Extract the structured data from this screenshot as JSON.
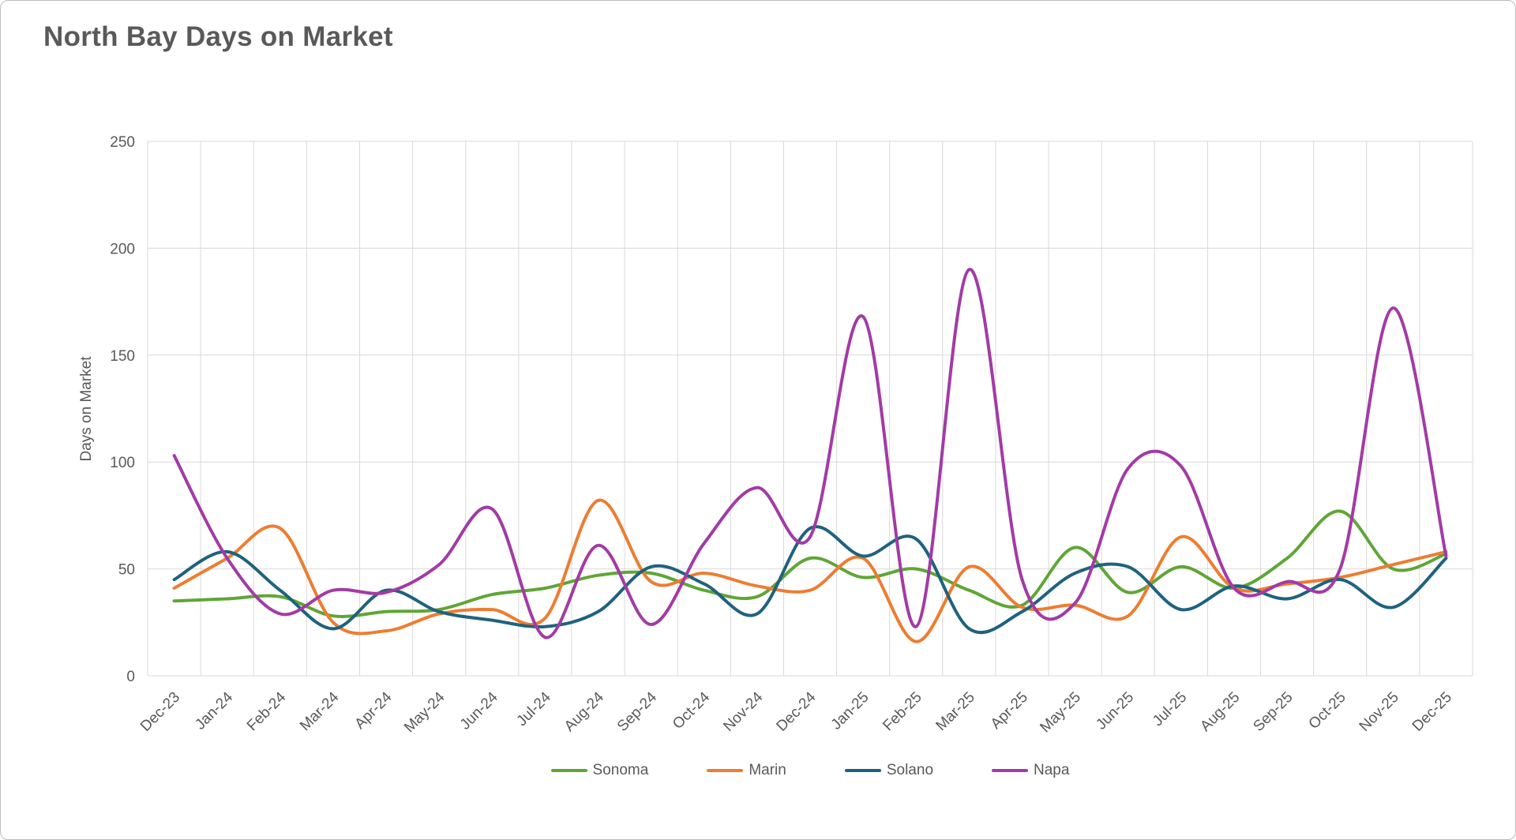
{
  "chart_data": {
    "type": "line",
    "title": "North Bay Days on Market",
    "xlabel": "",
    "ylabel": "Days on Market",
    "ylim": [
      0,
      250
    ],
    "yticks": [
      0,
      50,
      100,
      150,
      200,
      250
    ],
    "grid": true,
    "line_style": "smooth",
    "legend_position": "bottom",
    "categories": [
      "Dec-23",
      "Jan-24",
      "Feb-24",
      "Mar-24",
      "Apr-24",
      "May-24",
      "Jun-24",
      "Jul-24",
      "Aug-24",
      "Sep-24",
      "Oct-24",
      "Nov-24",
      "Dec-24",
      "Jan-25",
      "Feb-25",
      "Mar-25",
      "Apr-25",
      "May-25",
      "Jun-25",
      "Jul-25",
      "Aug-25",
      "Sep-25",
      "Oct-25",
      "Nov-25",
      "Dec-25"
    ],
    "series": [
      {
        "name": "Sonoma",
        "color": "#5fa636",
        "values": [
          35,
          36,
          37,
          28,
          30,
          31,
          38,
          41,
          47,
          48,
          40,
          37,
          55,
          46,
          50,
          40,
          33,
          60,
          39,
          51,
          41,
          55,
          77,
          50,
          57
        ]
      },
      {
        "name": "Marin",
        "color": "#ed7d31",
        "values": [
          41,
          55,
          69,
          25,
          21,
          29,
          31,
          27,
          82,
          44,
          48,
          42,
          40,
          55,
          16,
          51,
          32,
          33,
          28,
          65,
          41,
          43,
          46,
          52,
          58
        ]
      },
      {
        "name": "Solano",
        "color": "#1f627e",
        "values": [
          45,
          58,
          40,
          22,
          40,
          30,
          26,
          23,
          30,
          51,
          43,
          29,
          69,
          56,
          64,
          22,
          30,
          48,
          51,
          31,
          42,
          36,
          45,
          32,
          55
        ]
      },
      {
        "name": "Napa",
        "color": "#a23ba5",
        "values": [
          103,
          55,
          29,
          40,
          39,
          52,
          78,
          18,
          61,
          24,
          62,
          88,
          65,
          168,
          23,
          190,
          45,
          34,
          97,
          98,
          41,
          44,
          50,
          172,
          56
        ]
      }
    ],
    "colors": {
      "grid": "#d9d9d9",
      "text": "#595959"
    }
  }
}
